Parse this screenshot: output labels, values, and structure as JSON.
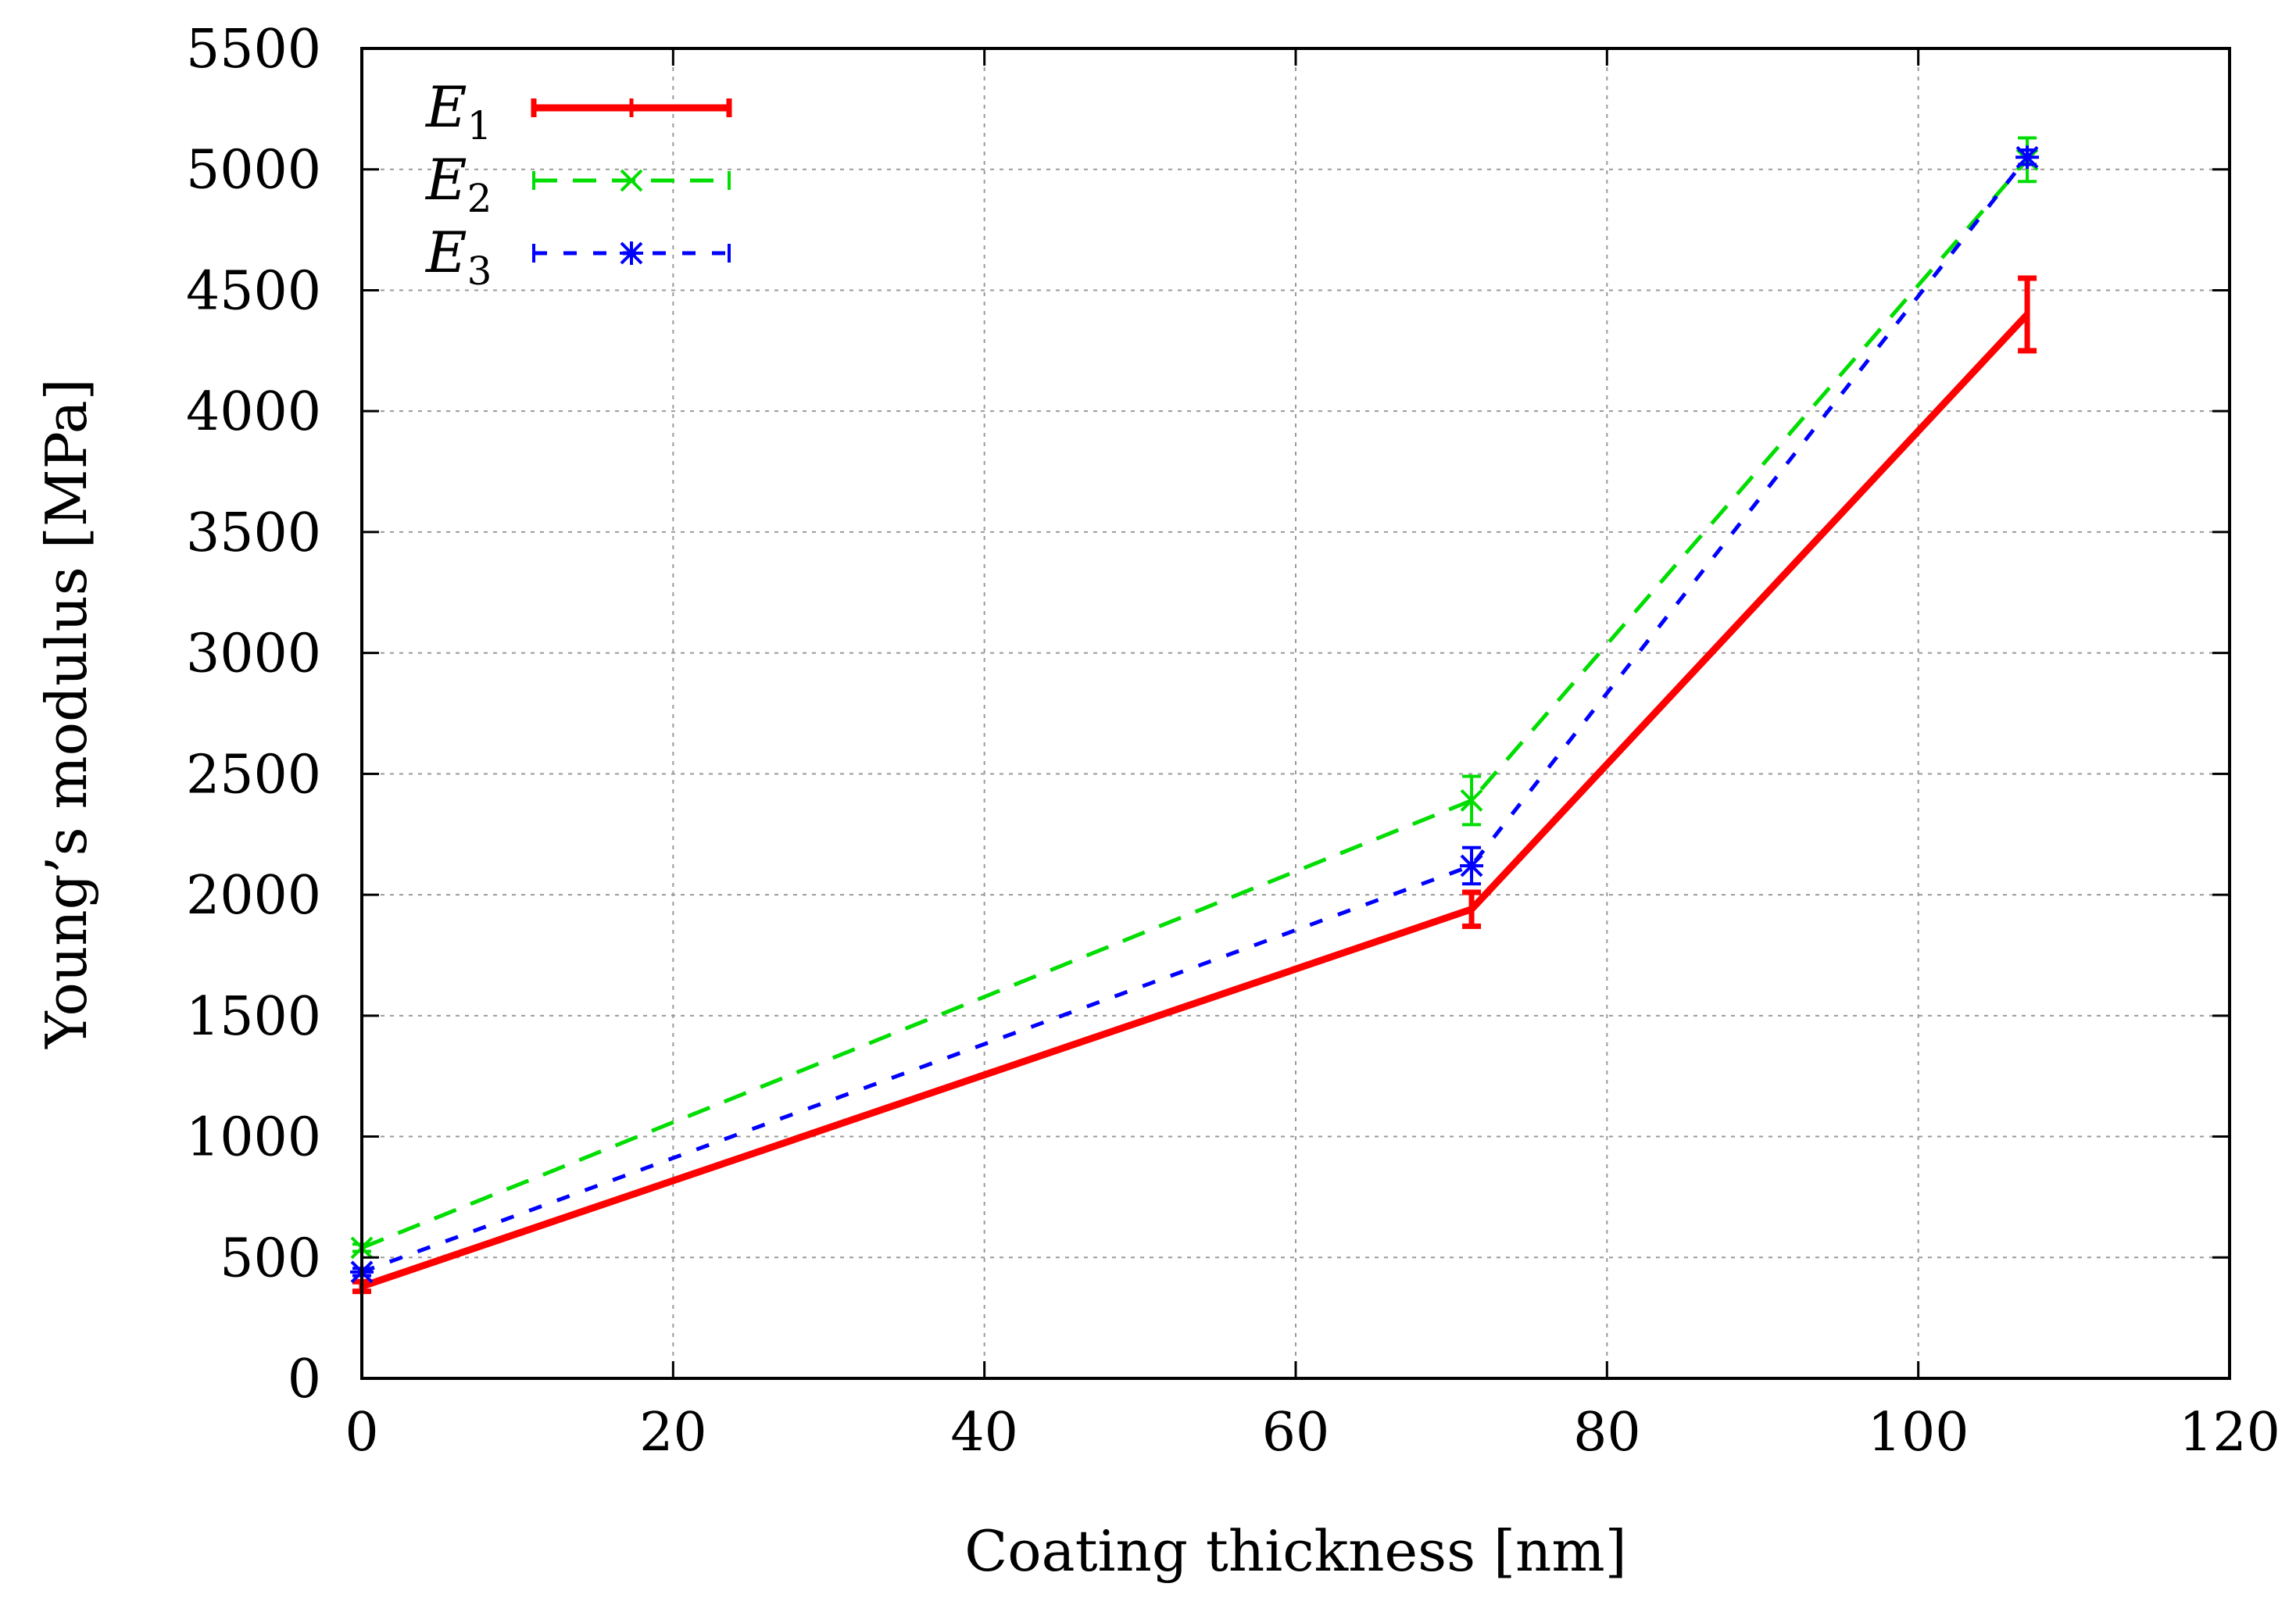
{
  "chart_data": {
    "type": "line",
    "title": "",
    "xlabel": "Coating thickness [nm]",
    "ylabel": "Young’s modulus [MPa]",
    "xlim": [
      0,
      120
    ],
    "ylim": [
      0,
      5500
    ],
    "xticks": [
      0,
      20,
      40,
      60,
      80,
      100,
      120
    ],
    "yticks": [
      0,
      500,
      1000,
      1500,
      2000,
      2500,
      3000,
      3500,
      4000,
      4500,
      5000,
      5500
    ],
    "grid": true,
    "legend_position": "top-left",
    "series": [
      {
        "name": "E",
        "subscript": "1",
        "color": "#ff0000",
        "line_style": "solid",
        "marker": "bar",
        "x": [
          0,
          71.3,
          107
        ],
        "y": [
          380,
          1940,
          4400
        ],
        "y_err": [
          20,
          70,
          150
        ]
      },
      {
        "name": "E",
        "subscript": "2",
        "color": "#00dd00",
        "line_style": "dashed",
        "marker": "x",
        "x": [
          0,
          71.3,
          107
        ],
        "y": [
          540,
          2390,
          5040
        ],
        "y_err": [
          15,
          100,
          90
        ]
      },
      {
        "name": "E",
        "subscript": "3",
        "color": "#0000ff",
        "line_style": "dotted",
        "marker": "star",
        "x": [
          0,
          71.3,
          107
        ],
        "y": [
          440,
          2120,
          5050
        ],
        "y_err": [
          15,
          75,
          30
        ]
      }
    ]
  }
}
